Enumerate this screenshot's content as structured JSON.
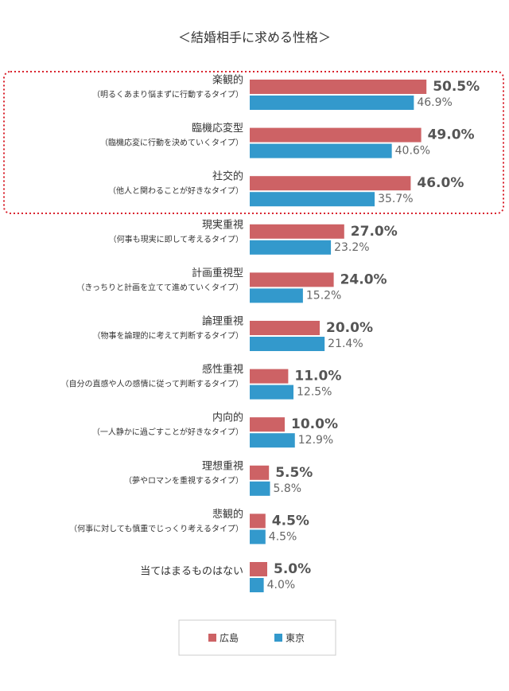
{
  "chart_data": {
    "type": "bar",
    "orientation": "horizontal",
    "title": "＜結婚相手に求める性格＞",
    "categories": [
      "楽観的",
      "臨機応変型",
      "社交的",
      "現実重視",
      "計画重視型",
      "論理重視",
      "感性重視",
      "内向的",
      "理想重視",
      "悲観的",
      "当てはまるものはない"
    ],
    "category_notes": [
      "（明るくあまり悩まずに行動するタイプ）",
      "（臨機応変に行動を決めていくタイプ）",
      "（他人と関わることが好きなタイプ）",
      "（何事も現実に即して考えるタイプ）",
      "（きっちりと計画を立てて進めていくタイプ）",
      "（物事を論理的に考えて判断するタイプ）",
      "（自分の直感や人の感情に従って判断するタイプ）",
      "（一人静かに過ごすことが好きなタイプ）",
      "（夢やロマンを重視するタイプ）",
      "（何事に対しても慎重でじっくり考えるタイプ）",
      null
    ],
    "series": [
      {
        "name": "広島",
        "color": "#cd6265",
        "values": [
          50.5,
          49.0,
          46.0,
          27.0,
          24.0,
          20.0,
          11.0,
          10.0,
          5.5,
          4.5,
          5.0
        ],
        "value_labels": [
          "50.5%",
          "49.0%",
          "46.0%",
          "27.0%",
          "24.0%",
          "20.0%",
          "11.0%",
          "10.0%",
          "5.5%",
          "4.5%",
          "5.0%"
        ]
      },
      {
        "name": "東京",
        "color": "#3399cc",
        "values": [
          46.9,
          40.6,
          35.7,
          23.2,
          15.2,
          21.4,
          12.5,
          12.9,
          5.8,
          4.5,
          4.0
        ],
        "value_labels": [
          "46.9%",
          "40.6%",
          "35.7%",
          "23.2%",
          "15.2%",
          "21.4%",
          "12.5%",
          "12.9%",
          "5.8%",
          "4.5%",
          "4.0%"
        ]
      }
    ]
  }
}
